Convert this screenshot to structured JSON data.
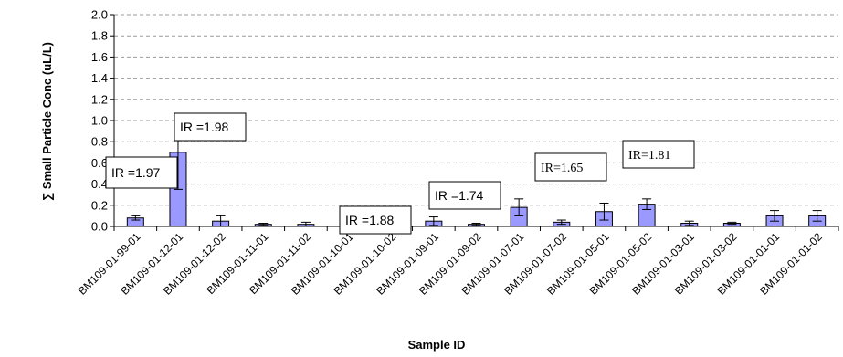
{
  "chart_data": {
    "type": "bar",
    "xlabel": "Sample ID",
    "ylabel": "∑ Small Particle Conc (uL/L)",
    "ylim": [
      0,
      2.0
    ],
    "yticks": [
      "0.0",
      "0.2",
      "0.4",
      "0.6",
      "0.8",
      "1.0",
      "1.2",
      "1.4",
      "1.6",
      "1.8",
      "2.0"
    ],
    "grid": true,
    "bar_color": "#9999ff",
    "categories": [
      "BM109-01-99-01",
      "BM109-01-12-01",
      "BM109-01-12-02",
      "BM109-01-11-01",
      "BM109-01-11-02",
      "BM109-01-10-01",
      "BM109-01-10-02",
      "BM109-01-09-01",
      "BM109-01-09-02",
      "BM109-01-07-01",
      "BM109-01-07-02",
      "BM109-01-05-01",
      "BM109-01-05-02",
      "BM109-01-03-01",
      "BM109-01-03-02",
      "BM109-01-01-01",
      "BM109-01-01-02"
    ],
    "values": [
      0.08,
      0.7,
      0.05,
      0.02,
      0.02,
      0.1,
      0.04,
      0.05,
      0.02,
      0.18,
      0.04,
      0.14,
      0.21,
      0.03,
      0.03,
      0.1,
      0.1
    ],
    "errors": [
      0.02,
      0.35,
      0.05,
      0.01,
      0.02,
      0.04,
      0.02,
      0.04,
      0.01,
      0.08,
      0.02,
      0.08,
      0.05,
      0.02,
      0.01,
      0.05,
      0.05
    ],
    "annotations": [
      {
        "text": "IR =1.97"
      },
      {
        "text": "IR =1.98"
      },
      {
        "text": "IR =1.88"
      },
      {
        "text": "IR =1.74"
      },
      {
        "text": "IR=1.65"
      },
      {
        "text": "IR=1.81"
      }
    ]
  }
}
